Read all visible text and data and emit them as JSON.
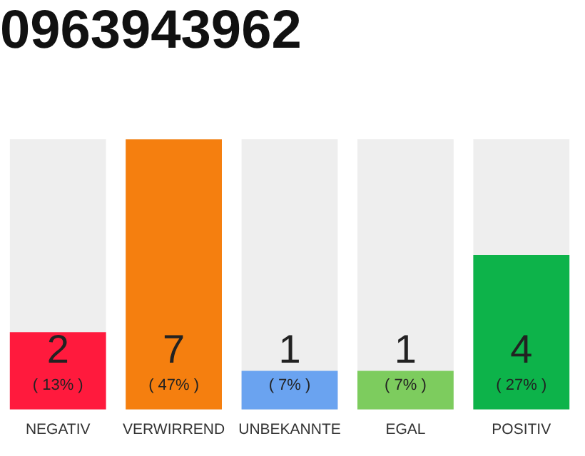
{
  "chart_data": {
    "type": "bar",
    "title": "0963943962",
    "categories": [
      "NEGATIV",
      "VERWIRREND",
      "UNBEKANNTE",
      "EGAL",
      "POSITIV"
    ],
    "values": [
      2,
      7,
      1,
      1,
      4
    ],
    "colors": [
      "#ff1a3d",
      "#f57f0f",
      "#6aa3f0",
      "#7dcc5e",
      "#0db34a"
    ],
    "ylim": [
      0,
      7
    ],
    "data_labels": true,
    "annotations": [
      "( 13% )",
      "( 47% )",
      "( 7% )",
      "( 7% )",
      "( 27% )"
    ],
    "grid": false,
    "legend": false
  }
}
